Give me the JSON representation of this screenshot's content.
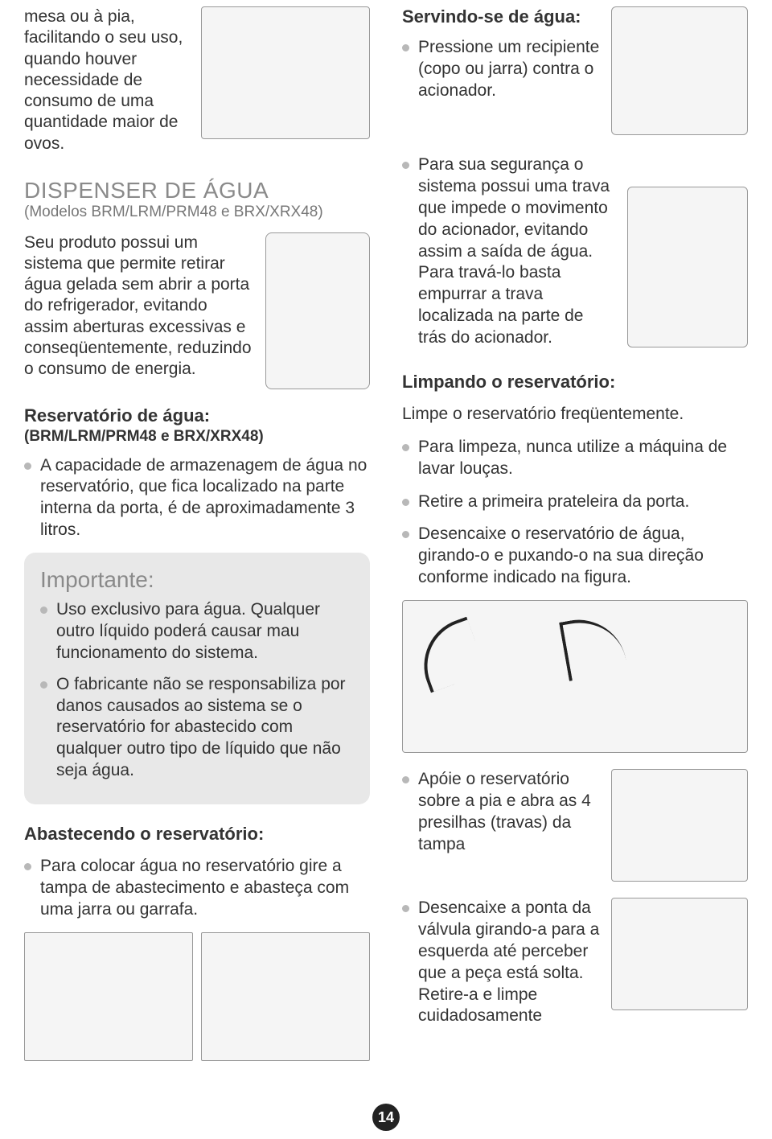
{
  "page_number": "14",
  "colors": {
    "text": "#333333",
    "muted": "#8a8a8a",
    "bullet": "#b8b8b8",
    "callout_bg": "#e8e8e8",
    "badge_bg": "#222222",
    "badge_text": "#ffffff",
    "fig_border": "#999999",
    "fig_bg": "#f5f5f5"
  },
  "left": {
    "intro": "mesa ou à pia, facilitando o seu uso, quando houver necessidade de consumo de uma quantidade maior de ovos.",
    "dispenser_title": "DISPENSER DE ÁGUA",
    "dispenser_models": "(Modelos BRM/LRM/PRM48 e BRX/XRX48)",
    "dispenser_body": "Seu produto possui um sistema que permite retirar água gelada sem abrir a porta do refrigerador, evitando assim aberturas excessivas e conseqüentemente, reduzindo o consumo de energia.",
    "reserv_title": "Reservatório de água:",
    "reserv_models": "(BRM/LRM/PRM48 e BRX/XRX48)",
    "reserv_bullets": [
      "A capacidade de armazenagem de água no reservatório, que fica localizado na parte interna da porta, é de aproximadamente 3 litros."
    ],
    "importante_title": "Importante:",
    "importante_bullets": [
      "Uso exclusivo para água. Qualquer outro líquido poderá causar mau funcionamento do sistema.",
      "O fabricante não se responsabiliza por danos causados ao sistema se o reservatório for abastecido com qualquer outro tipo de líquido que não seja água."
    ],
    "abast_title": "Abastecendo o reservatório:",
    "abast_bullets": [
      "Para colocar água no reservatório gire a tampa de abastecimento e abasteça com uma jarra ou garrafa."
    ]
  },
  "right": {
    "serv_title": "Servindo-se de água:",
    "serv_bullets": [
      "Pressione um recipiente (copo ou jarra) contra o acionador."
    ],
    "lock_bullets": [
      "Para sua segurança o sistema possui uma trava que impede o movimento do acionador, evitando assim a saída de água. Para travá-lo basta empurrar a trava localizada na parte de trás do acionador."
    ],
    "limp_title": "Limpando o reservatório:",
    "limp_lead": "Limpe o reservatório freqüentemente.",
    "limp_bullets": [
      "Para limpeza, nunca utilize a máquina de lavar louças.",
      "Retire a primeira prateleira da porta.",
      "Desencaixe o reservatório de água, girando-o e puxando-o na sua direção conforme indicado na figura."
    ],
    "step_apoie": "Apóie o reservatório sobre a pia e abra as 4 presilhas (travas) da tampa",
    "step_valvula": "Desencaixe a ponta da válvula girando-a para a esquerda até perceber que a peça está solta. Retire-a e limpe cuidadosamente"
  }
}
